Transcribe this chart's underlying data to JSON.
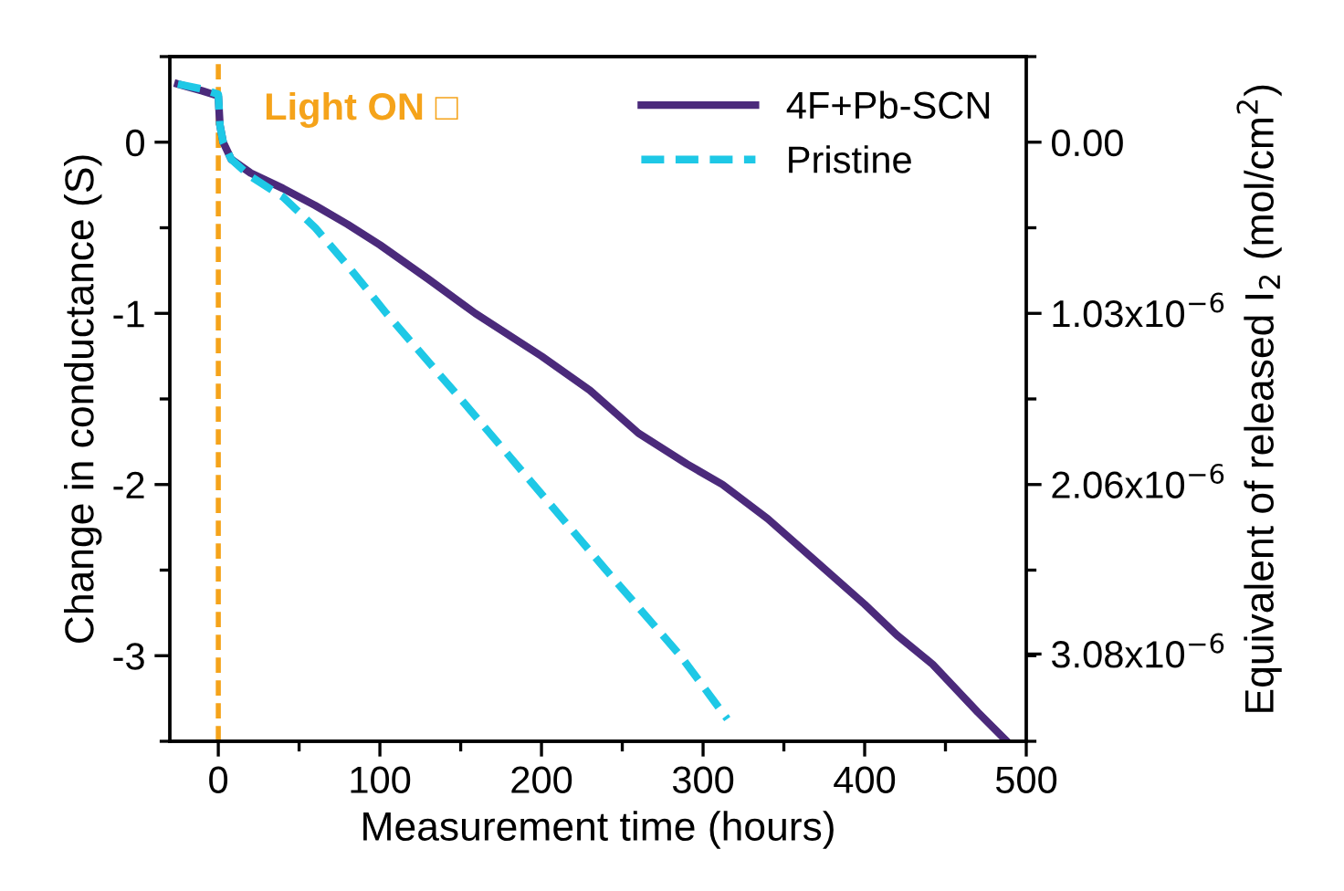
{
  "chart_data": {
    "type": "line",
    "xlabel": "Measurement time (hours)",
    "ylabel": "Change in conductance (S)",
    "y2label": "Equivalent of released I$_{2}$ (mol/cm$^{2}$)",
    "xlim": [
      -30,
      500
    ],
    "xticks": [
      0,
      100,
      200,
      300,
      400,
      500
    ],
    "ylim": [
      -3.5,
      0.5
    ],
    "yticks": [
      {
        "value": -3,
        "label": "-3"
      },
      {
        "value": -2,
        "label": "-2"
      },
      {
        "value": -1,
        "label": "-1"
      },
      0
    ],
    "y2lim": [
      3.605e-06,
      -5.15e-07
    ],
    "y2ticks": [
      {
        "value": 0,
        "label": "0.00"
      },
      {
        "value": 1.03e-06,
        "label": "1.03x10$^{−6}$"
      },
      {
        "value": 2.06e-06,
        "label": "2.06x10$^{−6}$"
      },
      {
        "value": 3.08e-06,
        "label": "3.08x10$^{−6}$"
      }
    ],
    "grid": false,
    "legend": "top right",
    "ref_lines": [
      {
        "axis": "x",
        "value": 0,
        "label": "Light ON □",
        "color": "#f5a31a",
        "line_style": "dashed"
      }
    ],
    "series": [
      {
        "name": "4F+Pb-SCN",
        "color": "#4b2a7b",
        "line_style": "solid",
        "x": [
          -25,
          -10,
          0,
          1,
          3,
          8,
          20,
          40,
          60,
          80,
          100,
          130,
          159,
          200,
          230,
          260,
          290,
          312,
          340,
          370,
          400,
          420,
          442,
          470,
          488
        ],
        "values": [
          0.34,
          0.3,
          0.27,
          0.1,
          0.0,
          -0.1,
          -0.18,
          -0.27,
          -0.37,
          -0.48,
          -0.6,
          -0.8,
          -1.0,
          -1.25,
          -1.45,
          -1.7,
          -1.88,
          -2.0,
          -2.2,
          -2.45,
          -2.7,
          -2.88,
          -3.05,
          -3.33,
          -3.5
        ]
      },
      {
        "name": "Pristine",
        "color": "#1ec8e6",
        "line_style": "dashed",
        "x": [
          -25,
          -10,
          0,
          1,
          3,
          8,
          20,
          40,
          60,
          80,
          104,
          150,
          195,
          240,
          286,
          315
        ],
        "values": [
          0.34,
          0.31,
          0.28,
          0.1,
          0.0,
          -0.1,
          -0.2,
          -0.32,
          -0.5,
          -0.72,
          -1.0,
          -1.5,
          -2.0,
          -2.5,
          -3.0,
          -3.37
        ]
      }
    ]
  }
}
